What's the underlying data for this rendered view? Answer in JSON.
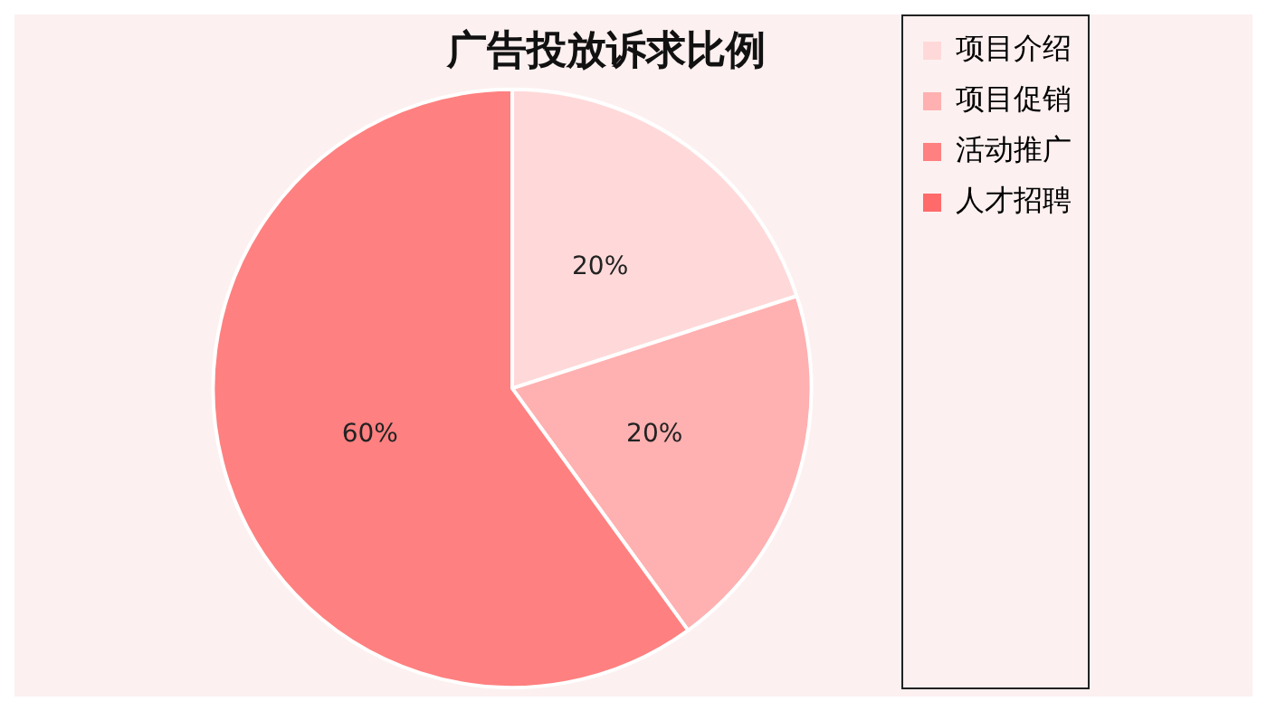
{
  "chart_data": {
    "type": "pie",
    "title": "广告投放诉求比例",
    "categories": [
      "项目介绍",
      "项目促销",
      "活动推广",
      "人才招聘"
    ],
    "values": [
      20,
      20,
      60,
      0
    ],
    "colors": [
      "#ffd9d9",
      "#ffb0b0",
      "#ff8080",
      "#ff6a6a"
    ],
    "value_labels": [
      "20%",
      "20%",
      "60%",
      null
    ],
    "legend": "right"
  }
}
